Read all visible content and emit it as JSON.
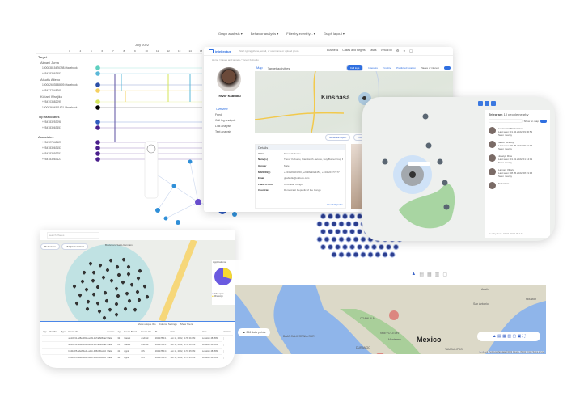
{
  "timeline": {
    "month": "July 2022",
    "days": [
      "3",
      "4",
      "5",
      "6",
      "7",
      "8",
      "9",
      "10",
      "11",
      "12",
      "13",
      "14",
      "15"
    ],
    "groups": [
      {
        "label": "Target",
        "people": [
          {
            "name": "Almasi Juma",
            "ids": [
              "100083815476398.0facebook",
              "+254783063453"
            ]
          },
          {
            "name": "Atsutis Atieno",
            "ids": [
              "100082603588609.0facebook",
              "+254727548765"
            ]
          },
          {
            "name": "Kiziani Wanjiku",
            "ids": [
              "+254703582095",
              "100083694511621.0facebook"
            ]
          }
        ]
      },
      {
        "label": "Top associates",
        "people": [
          {
            "name": "",
            "ids": [
              "+254783253098",
              "+254783063651"
            ]
          }
        ]
      },
      {
        "label": "Associates",
        "people": [
          {
            "name": "",
            "ids": [
              "+254727548125",
              "+254783063153",
              "+254783093751",
              "+254783063123"
            ]
          }
        ]
      }
    ],
    "colors": [
      "#5fd0c0",
      "#5bb8d8",
      "#2b4fa8",
      "#f5d061",
      "#d4e65a",
      "#000000",
      "#2f5bbf",
      "#4a1f8c"
    ]
  },
  "filters": [
    "Graph analysis",
    "Behavior analysis",
    "Filter by event ty...",
    "Graph layout"
  ],
  "profile": {
    "search_placeholder": "Start typing phone, email, or username or upload photo",
    "top_links": [
      "Business",
      "Cases and targets",
      "Tasks",
      "Virtual ID"
    ],
    "breadcrumb": "Home / Cases and targets / Trevor Kabudiu",
    "name": "Trevor Kabudiu",
    "nav": [
      "Overview",
      "Feed",
      "Call log analysis",
      "Link analysis",
      "Text analysis"
    ],
    "tabs": [
      "Map",
      "Target activities"
    ],
    "actions": [
      "Call logs",
      "Interests",
      "Timeline",
      "Predicted location"
    ],
    "toggle_label": "Places of interest",
    "city": "Kinshasa",
    "buttons": [
      "Generate report",
      "Profiler"
    ],
    "details_header": "Details",
    "fields": [
      {
        "k": "Alias",
        "v": "Trevor Kabudiu"
      },
      {
        "k": "Name(s)",
        "v": "Trevor Kabudiu, Kiandoroth Jacobs, Guy Burner, Guy Kinsal Kuyas"
      },
      {
        "k": "Gender",
        "v": "Male"
      },
      {
        "k": "MSISDN(s)",
        "v": "+243829023450, +243829023451, +243821977277"
      },
      {
        "k": "Email",
        "v": "gkabudiu@outlook.com"
      },
      {
        "k": "Place of birth",
        "v": "Kinshasa, Congo"
      },
      {
        "k": "Countries",
        "v": "Democratic Republic of the Congo"
      }
    ],
    "view_link": "View full profile"
  },
  "telegram": {
    "title": "Telegram",
    "subtitle": "10 people nearby",
    "toggle": "Show on map",
    "people": [
      {
        "name": "Lieutenant Maximiliano",
        "seen": "Last seen: 01.02.2022 09:00:51",
        "views": "Seen nearby"
      },
      {
        "name": "Jason Mcevoy",
        "seen": "Last seen: 09.05.2022 15:21:16",
        "views": "Seen nearby"
      },
      {
        "name": "Joselyn Rios",
        "seen": "Last seen: 01.01.2022 01:14:01",
        "views": "Seen nearby"
      },
      {
        "name": "Lamont Villoria",
        "seen": "Last seen: 08.05.2022 08:21:15",
        "views": "Seen nearby"
      },
      {
        "name": "Sebastian",
        "seen": "",
        "views": ""
      }
    ],
    "footer": "Nearby data: 01.01.2022 09:17"
  },
  "event_map": {
    "search_placeholder": "Search Places",
    "chips": [
      "Relevance",
      "Multiple locations"
    ],
    "street": "Boulevard Saint-Germain",
    "legend_title": "Applications",
    "legend": [
      {
        "label": "Other apps",
        "color": "#6a5ae0"
      },
      {
        "label": "WhatsApp",
        "color": "#f5d930"
      }
    ],
    "table_tools": [
      "Show unique IDs",
      "Column Settings",
      "Show filters"
    ],
    "columns": [
      "App",
      "Identifier",
      "Type",
      "Device ID",
      "Gender",
      "Age",
      "Device Brand",
      "Device OS",
      "IP",
      "Date",
      "Area",
      "Actions"
    ],
    "rows": [
      [
        "",
        "",
        "",
        "ab4c1f41-5d8e-4b95-ac89-1a74e8d67a2",
        "Male",
        "32",
        "Xiaomi",
        "Android",
        "192.178.0.1",
        "Jun 11, 2022, 11:59:01 PM",
        "Location 48.8566"
      ],
      [
        "",
        "",
        "",
        "ab4c1f41-5d8e-4b95-ac89-1a74e8d67a2",
        "Male",
        "25",
        "Xiaomi",
        "Android",
        "192.178.0.1",
        "Jun 11, 2022, 11:59:01 PM",
        "Location 48.8566"
      ],
      [
        "",
        "",
        "",
        "b84bd0f5-5de8-4e41-a11b-9d5c0f0a1b3",
        "Male",
        "41",
        "Apple",
        "iOS",
        "192.178.0.4",
        "Jun 11, 2022, 11:57:45 PM",
        "Location 48.8566"
      ],
      [
        "",
        "",
        "",
        "b84bd0f5-5de8-4e41-a11b-9d5c0f0a1b3",
        "Male",
        "38",
        "Apple",
        "iOS",
        "192.178.0.4",
        "Jun 11, 2022, 11:57:45 PM",
        "Location 48.8566"
      ]
    ],
    "pie_fraction_whatsapp": 0.3
  },
  "mexico_map": {
    "country": "Mexico",
    "labels": [
      "Austin",
      "San Antonio",
      "Houston",
      "COAHUILA",
      "NUEVO LEON",
      "Monterrey",
      "DURANGO",
      "BAJA CALIFORNIA SUR",
      "TAMAULIPAS"
    ],
    "points_label": "256 data points",
    "attribution": "Keyboard shortcuts  Map data ©2022 Google, INEGI  50 km  Terms of Use"
  }
}
